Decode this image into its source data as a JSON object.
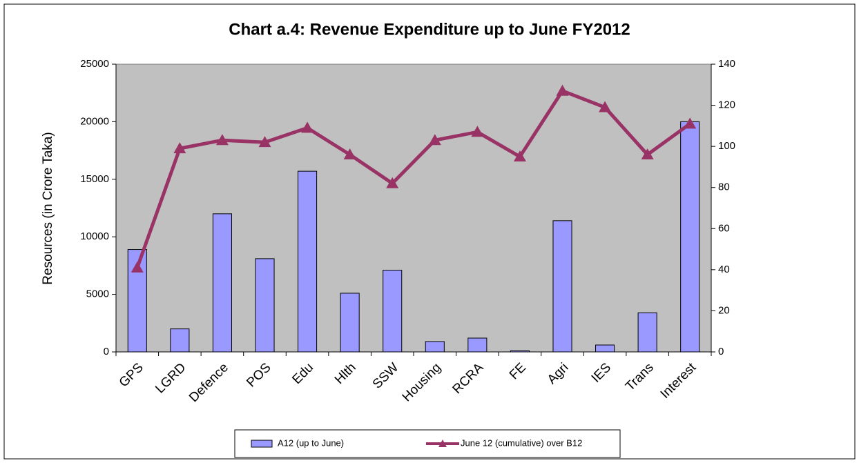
{
  "chart_data": {
    "type": "bar-line",
    "title": "Chart a.4:  Revenue Expenditure up to June FY2012",
    "y_label": "Resources (in Crore Taka)",
    "categories": [
      "GPS",
      "LGRD",
      "Defence",
      "POS",
      "Edu",
      "Hlth",
      "SSW",
      "Housing",
      "RCRA",
      "FE",
      "Agri",
      "IES",
      "Trans",
      "Interest"
    ],
    "series": [
      {
        "name": "A12 (up to June)",
        "color": "#9999ff",
        "type": "bar",
        "values": [
          8900,
          2000,
          12000,
          8100,
          15700,
          5100,
          7100,
          900,
          1200,
          100,
          11400,
          600,
          3400,
          20000
        ]
      },
      {
        "name": "June 12 (cumulative) over B12",
        "color": "#993366",
        "type": "line",
        "axis": "y2",
        "values": [
          41,
          99,
          103,
          102,
          109,
          96,
          82,
          103,
          107,
          95,
          127,
          119,
          96,
          111
        ]
      }
    ],
    "ylim": [
      0,
      25000
    ],
    "yticks": [
      0,
      5000,
      10000,
      15000,
      20000,
      25000
    ],
    "y2lim": [
      0,
      140
    ],
    "y2ticks": [
      0,
      20,
      40,
      60,
      80,
      100,
      120,
      140
    ],
    "legend": "bottom",
    "plot_background": "#c0c0c0"
  }
}
